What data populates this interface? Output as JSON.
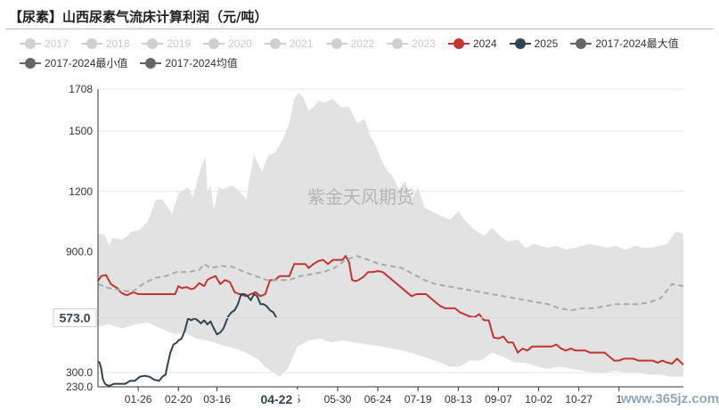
{
  "page": {
    "title": "【尿素】山西尿素气流床计算利润（元/吨）",
    "watermark": "紫金天风期货",
    "site_watermark": "www.365jz.com"
  },
  "legend": [
    {
      "label": "2017",
      "color": "#cccccc",
      "active": false
    },
    {
      "label": "2018",
      "color": "#cccccc",
      "active": false
    },
    {
      "label": "2019",
      "color": "#cccccc",
      "active": false
    },
    {
      "label": "2020",
      "color": "#cccccc",
      "active": false
    },
    {
      "label": "2021",
      "color": "#cccccc",
      "active": false
    },
    {
      "label": "2022",
      "color": "#cccccc",
      "active": false
    },
    {
      "label": "2023",
      "color": "#cccccc",
      "active": false
    },
    {
      "label": "2024",
      "color": "#c23531",
      "active": true
    },
    {
      "label": "2025",
      "color": "#2f4554",
      "active": true
    },
    {
      "label": "2017-2024最大值",
      "color": "#666666",
      "active": true
    },
    {
      "label": "2017-2024最小值",
      "color": "#666666",
      "active": true
    },
    {
      "label": "2017-2024均值",
      "color": "#666666",
      "active": true
    }
  ],
  "chart_data": {
    "type": "line",
    "ylim": [
      230,
      1708
    ],
    "y_ticks": [
      230,
      300,
      900,
      1200,
      1500,
      1708
    ],
    "y_tick_labels": [
      "230.0",
      "300.0",
      "900.0",
      "1200",
      "1500",
      "1708"
    ],
    "x_range": [
      "01-01",
      "12-31"
    ],
    "x_ticks": [
      {
        "label": "01-26",
        "date": "01-26"
      },
      {
        "label": "02-20",
        "date": "02-20"
      },
      {
        "label": "03-16",
        "date": "03-16"
      },
      {
        "label": "5",
        "date": "05-05"
      },
      {
        "label": "05-30",
        "date": "05-30"
      },
      {
        "label": "06-24",
        "date": "06-24"
      },
      {
        "label": "07-19",
        "date": "07-19"
      },
      {
        "label": "08-13",
        "date": "08-13"
      },
      {
        "label": "09-07",
        "date": "09-07"
      },
      {
        "label": "10-02",
        "date": "10-02"
      },
      {
        "label": "10-27",
        "date": "10-27"
      },
      {
        "label": "1",
        "date": "11-21"
      }
    ],
    "pointer_label": "04-22",
    "pointer_date": "04-22",
    "current_value_label": "573.0",
    "current_value": 573,
    "band_max": {
      "name": "2017-2024最大值",
      "x": [
        "01-01",
        "01-05",
        "01-08",
        "01-10",
        "01-16",
        "01-22",
        "01-27",
        "02-01",
        "02-06",
        "02-10",
        "02-16",
        "02-20",
        "02-26",
        "03-01",
        "03-04",
        "03-07",
        "03-09",
        "03-10",
        "03-12",
        "03-14",
        "03-17",
        "03-20",
        "03-25",
        "03-29",
        "04-03",
        "04-08",
        "04-13",
        "04-17",
        "04-21",
        "04-26",
        "04-30",
        "05-03",
        "05-06",
        "05-09",
        "05-12",
        "05-15",
        "05-18",
        "05-22",
        "05-27",
        "06-01",
        "06-06",
        "06-11",
        "06-16",
        "06-19",
        "06-22",
        "06-26",
        "06-30",
        "07-03",
        "07-07",
        "07-11",
        "07-15",
        "07-19",
        "07-23",
        "07-28",
        "08-02",
        "08-08",
        "08-13",
        "08-18",
        "08-23",
        "08-29",
        "09-03",
        "09-08",
        "09-13",
        "09-19",
        "09-24",
        "09-29",
        "10-03",
        "10-08",
        "10-13",
        "10-19",
        "10-24",
        "10-29",
        "11-03",
        "11-08",
        "11-14",
        "11-19",
        "11-25",
        "12-01",
        "12-06",
        "12-11",
        "12-16",
        "12-21",
        "12-26",
        "12-31"
      ],
      "y": [
        990,
        985,
        930,
        970,
        960,
        1000,
        1010,
        1050,
        1160,
        1160,
        1090,
        1190,
        1220,
        1170,
        1260,
        1340,
        1370,
        1200,
        1230,
        1110,
        1220,
        1210,
        1230,
        1210,
        1160,
        1380,
        1300,
        1380,
        1390,
        1460,
        1540,
        1660,
        1690,
        1660,
        1600,
        1620,
        1650,
        1640,
        1660,
        1620,
        1620,
        1540,
        1560,
        1480,
        1440,
        1360,
        1300,
        1280,
        1210,
        1250,
        1160,
        1220,
        1120,
        1100,
        1080,
        1060,
        1100,
        1050,
        1010,
        980,
        1020,
        980,
        950,
        960,
        920,
        940,
        930,
        920,
        930,
        910,
        920,
        930,
        940,
        930,
        920,
        930,
        910,
        930,
        920,
        920,
        930,
        940,
        1000,
        990
      ]
    },
    "band_min": {
      "name": "2017-2024最小值",
      "x": [
        "01-01",
        "01-08",
        "01-16",
        "01-24",
        "02-01",
        "02-09",
        "02-18",
        "02-24",
        "03-03",
        "03-10",
        "03-18",
        "03-27",
        "04-03",
        "04-10",
        "04-15",
        "04-20",
        "04-24",
        "04-29",
        "05-05",
        "05-12",
        "05-19",
        "05-26",
        "06-02",
        "06-10",
        "06-18",
        "06-26",
        "07-03",
        "07-10",
        "07-18",
        "07-26",
        "08-02",
        "08-08",
        "08-14",
        "08-20",
        "08-27",
        "09-03",
        "09-10",
        "09-17",
        "09-24",
        "10-01",
        "10-08",
        "10-15",
        "10-22",
        "10-29",
        "11-05",
        "11-12",
        "11-19",
        "11-26",
        "12-03",
        "12-10",
        "12-17",
        "12-24",
        "12-31"
      ],
      "y": [
        530,
        540,
        520,
        540,
        550,
        520,
        490,
        500,
        470,
        460,
        440,
        420,
        400,
        370,
        330,
        300,
        280,
        320,
        430,
        460,
        470,
        450,
        460,
        450,
        440,
        430,
        420,
        410,
        390,
        370,
        350,
        330,
        330,
        360,
        360,
        400,
        380,
        350,
        350,
        330,
        320,
        330,
        320,
        310,
        300,
        300,
        310,
        300,
        300,
        290,
        290,
        280,
        280
      ]
    },
    "series": [
      {
        "name": "2024",
        "color": "#c23531",
        "x": [
          "01-01",
          "01-03",
          "01-06",
          "01-09",
          "01-11",
          "01-13",
          "01-15",
          "01-17",
          "01-19",
          "01-23",
          "01-26",
          "01-30",
          "02-03",
          "02-07",
          "02-11",
          "02-15",
          "02-18",
          "02-20",
          "02-22",
          "02-25",
          "02-28",
          "03-02",
          "03-05",
          "03-08",
          "03-10",
          "03-12",
          "03-15",
          "03-18",
          "03-21",
          "03-24",
          "03-27",
          "03-30",
          "04-03",
          "04-06",
          "04-09",
          "04-12",
          "04-15",
          "04-18",
          "04-21",
          "04-24",
          "04-27",
          "04-30",
          "05-03",
          "05-07",
          "05-10",
          "05-12",
          "05-15",
          "05-18",
          "05-21",
          "05-24",
          "05-27",
          "05-30",
          "06-02",
          "06-04",
          "06-06",
          "06-08",
          "06-10",
          "06-12",
          "06-15",
          "06-18",
          "06-21",
          "06-24",
          "06-27",
          "06-30",
          "07-03",
          "07-06",
          "07-09",
          "07-12",
          "07-15",
          "07-18",
          "07-21",
          "07-24",
          "07-27",
          "07-30",
          "08-02",
          "08-05",
          "08-08",
          "08-11",
          "08-14",
          "08-17",
          "08-20",
          "08-23",
          "08-26",
          "08-29",
          "09-01",
          "09-04",
          "09-07",
          "09-10",
          "09-13",
          "09-16",
          "09-19",
          "09-22",
          "09-25",
          "09-28",
          "10-01",
          "10-04",
          "10-07",
          "10-10",
          "10-13",
          "10-16",
          "10-19",
          "10-22",
          "10-25",
          "10-28",
          "10-31",
          "11-03",
          "11-06",
          "11-09",
          "11-12",
          "11-15",
          "11-18",
          "11-21",
          "11-24",
          "11-27",
          "11-30",
          "12-03",
          "12-06",
          "12-09",
          "12-12",
          "12-15",
          "12-18",
          "12-21",
          "12-24",
          "12-27",
          "12-31"
        ],
        "y": [
          755,
          780,
          785,
          740,
          730,
          720,
          700,
          690,
          685,
          700,
          690,
          690,
          690,
          690,
          690,
          690,
          690,
          730,
          720,
          725,
          715,
          720,
          745,
          730,
          760,
          770,
          780,
          740,
          760,
          750,
          700,
          690,
          680,
          690,
          700,
          680,
          690,
          760,
          760,
          780,
          780,
          780,
          840,
          840,
          840,
          820,
          840,
          855,
          860,
          840,
          860,
          860,
          860,
          880,
          850,
          760,
          755,
          760,
          775,
          800,
          800,
          805,
          800,
          780,
          760,
          740,
          720,
          700,
          680,
          690,
          690,
          690,
          670,
          650,
          630,
          620,
          620,
          620,
          600,
          590,
          580,
          575,
          590,
          560,
          560,
          475,
          470,
          480,
          450,
          450,
          400,
          420,
          410,
          430,
          430,
          430,
          430,
          430,
          440,
          420,
          410,
          420,
          410,
          410,
          410,
          400,
          400,
          400,
          400,
          380,
          360,
          360,
          370,
          370,
          370,
          360,
          360,
          360,
          360,
          350,
          360,
          350,
          345,
          370,
          340
        ]
      },
      {
        "name": "2025",
        "color": "#2f4554",
        "x": [
          "01-01",
          "01-02",
          "01-03",
          "01-04",
          "01-05",
          "01-06",
          "01-08",
          "01-11",
          "01-14",
          "01-18",
          "01-21",
          "01-24",
          "01-27",
          "01-30",
          "02-02",
          "02-05",
          "02-08",
          "02-10",
          "02-12",
          "02-13",
          "02-15",
          "02-17",
          "02-19",
          "02-20",
          "02-22",
          "02-24",
          "02-26",
          "02-28",
          "03-02",
          "03-04",
          "03-06",
          "03-08",
          "03-10",
          "03-12",
          "03-14",
          "03-16",
          "03-18",
          "03-20",
          "03-23",
          "03-25",
          "03-27",
          "03-29",
          "03-31",
          "04-02",
          "04-04",
          "04-06",
          "04-08",
          "04-10",
          "04-12",
          "04-14",
          "04-16",
          "04-18",
          "04-20",
          "04-22"
        ],
        "y": [
          355,
          350,
          320,
          270,
          250,
          240,
          235,
          245,
          245,
          245,
          260,
          260,
          280,
          285,
          280,
          265,
          260,
          280,
          290,
          330,
          400,
          440,
          450,
          460,
          470,
          510,
          570,
          560,
          570,
          560,
          545,
          560,
          540,
          555,
          520,
          490,
          500,
          520,
          580,
          600,
          610,
          640,
          690,
          690,
          680,
          660,
          690,
          680,
          640,
          640,
          630,
          610,
          600,
          573
        ]
      },
      {
        "name": "2017-2024均值",
        "color": "#aaaaaa",
        "dashed": true,
        "x": [
          "01-01",
          "01-08",
          "01-15",
          "01-22",
          "01-29",
          "02-05",
          "02-12",
          "02-19",
          "02-26",
          "03-05",
          "03-08",
          "03-12",
          "03-19",
          "03-26",
          "04-02",
          "04-09",
          "04-16",
          "04-23",
          "04-30",
          "05-07",
          "05-14",
          "05-21",
          "05-28",
          "06-04",
          "06-11",
          "06-18",
          "06-25",
          "07-02",
          "07-09",
          "07-16",
          "07-23",
          "07-30",
          "08-06",
          "08-13",
          "08-20",
          "08-27",
          "09-03",
          "09-10",
          "09-17",
          "09-24",
          "10-01",
          "10-08",
          "10-15",
          "10-22",
          "10-29",
          "11-05",
          "11-12",
          "11-19",
          "11-26",
          "12-03",
          "12-10",
          "12-17",
          "12-24",
          "12-31"
        ],
        "y": [
          740,
          720,
          710,
          700,
          740,
          770,
          780,
          800,
          800,
          810,
          840,
          820,
          830,
          825,
          800,
          780,
          760,
          760,
          760,
          780,
          790,
          800,
          820,
          860,
          880,
          860,
          840,
          830,
          820,
          790,
          760,
          740,
          730,
          720,
          710,
          700,
          690,
          680,
          670,
          660,
          650,
          640,
          620,
          610,
          620,
          620,
          630,
          640,
          640,
          640,
          650,
          670,
          740,
          730
        ]
      }
    ]
  }
}
